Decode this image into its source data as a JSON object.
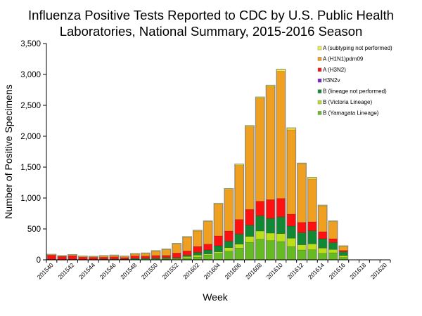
{
  "chart_data": {
    "type": "bar",
    "stacked": true,
    "title": [
      "Influenza Positive Tests Reported to CDC by U.S. Public Health",
      "Laboratories, National Summary, 2015-2016 Season"
    ],
    "xlabel": "Week",
    "ylabel": "Number of Positive Specimens",
    "ylim": [
      0,
      3500
    ],
    "yticks": [
      0,
      500,
      1000,
      1500,
      2000,
      2500,
      3000,
      3500
    ],
    "ytick_labels": [
      "0",
      "500",
      "1,000",
      "1,500",
      "2,000",
      "2,500",
      "3,000",
      "3,500"
    ],
    "grid": false,
    "legend_position": "top-right",
    "categories": [
      "201540",
      "201541",
      "201542",
      "201543",
      "201544",
      "201545",
      "201546",
      "201547",
      "201548",
      "201549",
      "201550",
      "201551",
      "201552",
      "201601",
      "201602",
      "201603",
      "201604",
      "201605",
      "201606",
      "201607",
      "201608",
      "201609",
      "201610",
      "201611",
      "201612",
      "201613",
      "201614",
      "201615",
      "201616",
      "201617",
      "201618",
      "201619",
      "201620"
    ],
    "xtick_labels": [
      "201540",
      "201542",
      "201544",
      "201546",
      "201548",
      "201550",
      "201552",
      "201602",
      "201604",
      "201606",
      "201608",
      "201610",
      "201612",
      "201614",
      "201616",
      "201618",
      "201620"
    ],
    "series": [
      {
        "name": "B (Yamagata Lineage)",
        "color": "#66bb22",
        "values": [
          3,
          2,
          3,
          2,
          2,
          3,
          3,
          3,
          6,
          8,
          10,
          12,
          15,
          34,
          45,
          76,
          106,
          140,
          190,
          284,
          334,
          311,
          296,
          216,
          159,
          163,
          106,
          114,
          38,
          0,
          0,
          0,
          0
        ]
      },
      {
        "name": "B (Victoria Lineage)",
        "color": "#bbe01a",
        "values": [
          1,
          1,
          1,
          1,
          1,
          2,
          2,
          1,
          3,
          4,
          5,
          6,
          8,
          19,
          31,
          19,
          23,
          57,
          64,
          95,
          132,
          121,
          128,
          133,
          84,
          95,
          84,
          53,
          30,
          0,
          0,
          0,
          0
        ]
      },
      {
        "name": "B (lineage not performed)",
        "color": "#118833",
        "values": [
          5,
          4,
          5,
          4,
          4,
          6,
          8,
          7,
          14,
          14,
          15,
          18,
          12,
          23,
          45,
          64,
          98,
          106,
          163,
          182,
          247,
          239,
          270,
          197,
          197,
          212,
          151,
          113,
          61,
          0,
          0,
          0,
          0
        ]
      },
      {
        "name": "H3N2v",
        "color": "#7722cc",
        "values": [
          0,
          0,
          0,
          0,
          0,
          0,
          0,
          0,
          0,
          0,
          0,
          0,
          0,
          0,
          0,
          0,
          0,
          0,
          0,
          0,
          0,
          0,
          0,
          0,
          0,
          0,
          0,
          0,
          0,
          0,
          0,
          0,
          0
        ]
      },
      {
        "name": "A (H3N2)",
        "color": "#ff1111",
        "values": [
          65,
          48,
          58,
          35,
          32,
          30,
          35,
          25,
          40,
          35,
          40,
          35,
          75,
          68,
          95,
          95,
          160,
          163,
          235,
          254,
          235,
          303,
          299,
          193,
          166,
          144,
          114,
          61,
          23,
          0,
          0,
          0,
          0
        ]
      },
      {
        "name": "A (H1N1)pdm09",
        "color": "#f0a020",
        "values": [
          8,
          6,
          10,
          12,
          11,
          20,
          20,
          18,
          30,
          40,
          68,
          92,
          143,
          220,
          250,
          364,
          511,
          671,
          875,
          1338,
          1667,
          1830,
          2057,
          1364,
          948,
          694,
          417,
          277,
          64,
          0,
          0,
          0,
          0
        ]
      },
      {
        "name": "A (subtyping not performed)",
        "color": "#f4f040",
        "values": [
          3,
          3,
          3,
          3,
          3,
          3,
          4,
          3,
          5,
          5,
          6,
          7,
          8,
          7,
          8,
          7,
          12,
          11,
          18,
          15,
          15,
          16,
          30,
          27,
          6,
          22,
          8,
          7,
          6,
          0,
          0,
          0,
          0
        ]
      }
    ]
  }
}
